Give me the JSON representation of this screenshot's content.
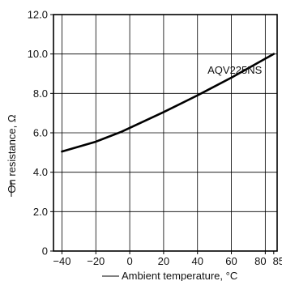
{
  "chart_data": {
    "type": "line",
    "title": "",
    "xlabel": "Ambient temperature, °C",
    "ylabel": "On resistance, Ω",
    "xlim": [
      -45,
      87
    ],
    "ylim": [
      0,
      12
    ],
    "x_ticks": [
      -40,
      -20,
      0,
      20,
      40,
      60,
      80,
      85
    ],
    "x_tick_labels": [
      "−40",
      "−20",
      "0",
      "20",
      "40",
      "60",
      "80",
      "85"
    ],
    "y_ticks": [
      0,
      2,
      4,
      6,
      8,
      10,
      12
    ],
    "y_tick_labels": [
      "0",
      "2.0",
      "4.0",
      "6.0",
      "8.0",
      "10.0",
      "12.0"
    ],
    "grid": true,
    "series": [
      {
        "name": "AQV225NS",
        "x": [
          -40,
          -20,
          -5,
          0,
          20,
          40,
          60,
          85
        ],
        "y": [
          5.05,
          5.55,
          6.05,
          6.25,
          7.05,
          7.9,
          8.8,
          10.0
        ]
      }
    ],
    "annotations": [
      {
        "text": "AQV225NS",
        "x": 62,
        "y": 9.0
      }
    ]
  }
}
